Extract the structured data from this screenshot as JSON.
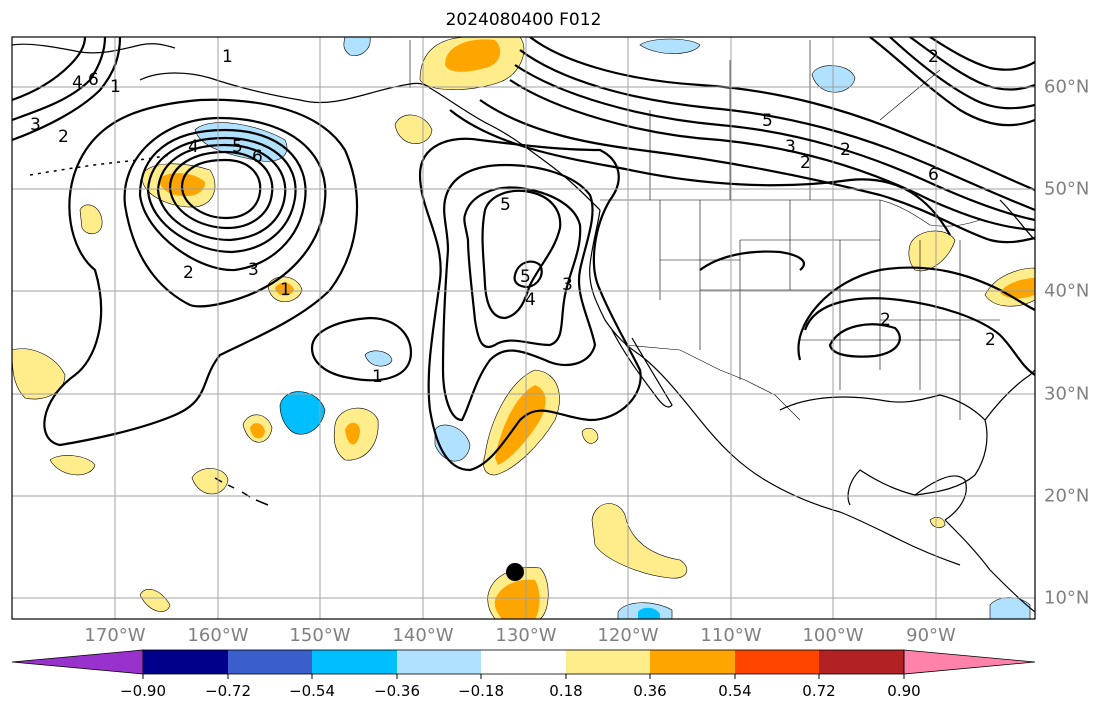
{
  "title": "2024080400 F012",
  "lon_labels": [
    "170°W",
    "160°W",
    "150°W",
    "140°W",
    "130°W",
    "120°W",
    "110°W",
    "100°W",
    "90°W"
  ],
  "lat_labels": [
    "60°N",
    "50°N",
    "40°N",
    "30°N",
    "20°N",
    "10°N"
  ],
  "colorbar": {
    "ticks": [
      "−0.90",
      "−0.72",
      "−0.54",
      "−0.36",
      "−0.18",
      "0.18",
      "0.36",
      "0.54",
      "0.72",
      "0.90"
    ],
    "colors": [
      "#9932cc",
      "#00008b",
      "#3a5fcd",
      "#00bfff",
      "#b0e2ff",
      "#ffffff",
      "#ffec8b",
      "#ffa500",
      "#ff4500",
      "#b22222",
      "#ff82ab"
    ]
  },
  "contour_labels": [
    "2",
    "3",
    "4",
    "5",
    "6",
    "1",
    "2",
    "3",
    "4",
    "5",
    "6",
    "1",
    "2",
    "3",
    "5",
    "1",
    "2",
    "3",
    "4",
    "5",
    "6",
    "2",
    "2",
    "2",
    "1"
  ],
  "marker": {
    "lon": -131,
    "lat": 12.5
  }
}
